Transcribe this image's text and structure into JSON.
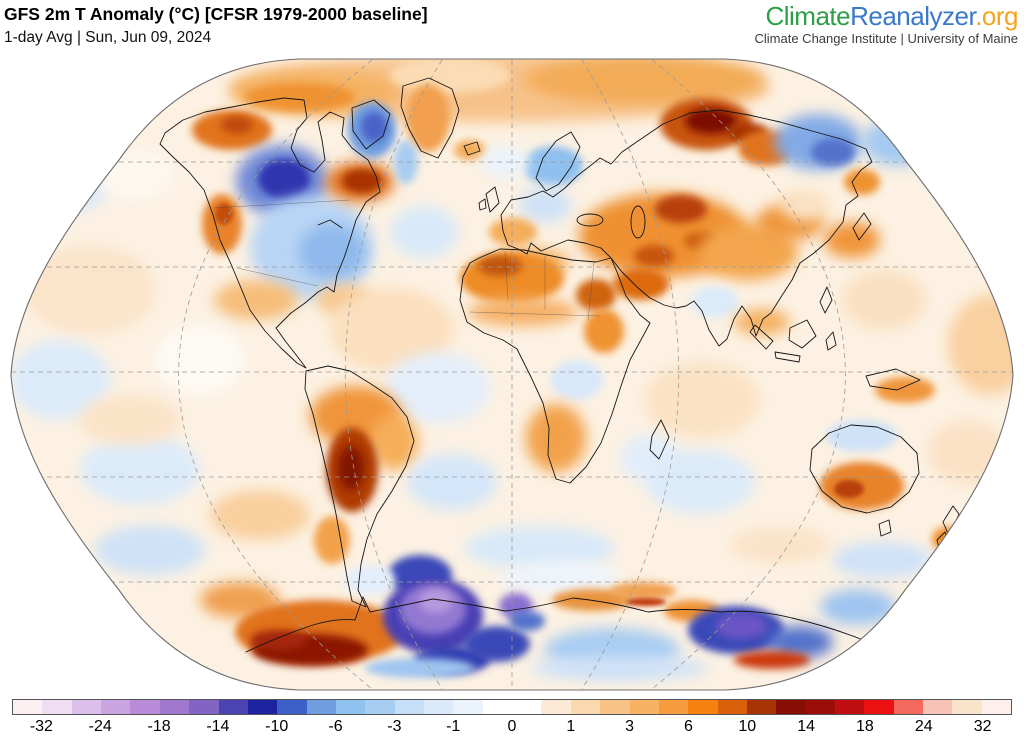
{
  "header": {
    "title": "GFS 2m T Anomaly (°C) [CFSR 1979-2000 baseline]",
    "subtitle": "1-day Avg | Sun, Jun 09, 2024"
  },
  "logo": {
    "part1": "Climate",
    "part2": "Reanalyzer",
    "part3": ".org",
    "tagline": "Climate Change Institute | University of Maine",
    "colors": {
      "part1": "#2f9e49",
      "part2": "#3a78c9",
      "part3": "#f5a41f"
    }
  },
  "colorbar": {
    "ticks": [
      {
        "label": "-32",
        "pos": 2.94
      },
      {
        "label": "-24",
        "pos": 8.82
      },
      {
        "label": "-18",
        "pos": 14.71
      },
      {
        "label": "-14",
        "pos": 20.59
      },
      {
        "label": "-10",
        "pos": 26.47
      },
      {
        "label": "-6",
        "pos": 32.35
      },
      {
        "label": "-3",
        "pos": 38.24
      },
      {
        "label": "-1",
        "pos": 44.12
      },
      {
        "label": "0",
        "pos": 50.0
      },
      {
        "label": "1",
        "pos": 55.88
      },
      {
        "label": "3",
        "pos": 61.76
      },
      {
        "label": "6",
        "pos": 67.65
      },
      {
        "label": "10",
        "pos": 73.53
      },
      {
        "label": "14",
        "pos": 79.41
      },
      {
        "label": "18",
        "pos": 85.29
      },
      {
        "label": "24",
        "pos": 91.18
      },
      {
        "label": "32",
        "pos": 97.06
      }
    ],
    "segments": [
      {
        "color": "#fcf0f2",
        "span": 1
      },
      {
        "color": "#efddf2",
        "span": 1
      },
      {
        "color": "#ddbfec",
        "span": 1
      },
      {
        "color": "#cba4e2",
        "span": 1
      },
      {
        "color": "#b98bd8",
        "span": 1
      },
      {
        "color": "#a277ce",
        "span": 1
      },
      {
        "color": "#8164c4",
        "span": 1
      },
      {
        "color": "#4c43b2",
        "span": 1
      },
      {
        "color": "#1c22a0",
        "span": 1
      },
      {
        "color": "#3c60c8",
        "span": 1
      },
      {
        "color": "#6f9de0",
        "span": 1
      },
      {
        "color": "#90c2ef",
        "span": 1
      },
      {
        "color": "#a8cdf3",
        "span": 1
      },
      {
        "color": "#c5dff8",
        "span": 1
      },
      {
        "color": "#daeafa",
        "span": 1
      },
      {
        "color": "#eaf2fc",
        "span": 1
      },
      {
        "color": "#ffffff",
        "span": 2
      },
      {
        "color": "#fcead6",
        "span": 1
      },
      {
        "color": "#fbd9ae",
        "span": 1
      },
      {
        "color": "#f9c286",
        "span": 1
      },
      {
        "color": "#f8b264",
        "span": 1
      },
      {
        "color": "#f69c3e",
        "span": 1
      },
      {
        "color": "#f5820e",
        "span": 1
      },
      {
        "color": "#d95f08",
        "span": 1
      },
      {
        "color": "#a83305",
        "span": 1
      },
      {
        "color": "#870e05",
        "span": 1
      },
      {
        "color": "#9c0d0a",
        "span": 1
      },
      {
        "color": "#c00d0f",
        "span": 1
      },
      {
        "color": "#ec1111",
        "span": 1
      },
      {
        "color": "#f4695e",
        "span": 1
      },
      {
        "color": "#f8c3b6",
        "span": 1
      },
      {
        "color": "#fae3cb",
        "span": 1
      },
      {
        "color": "#fdf0ec",
        "span": 1
      }
    ]
  }
}
